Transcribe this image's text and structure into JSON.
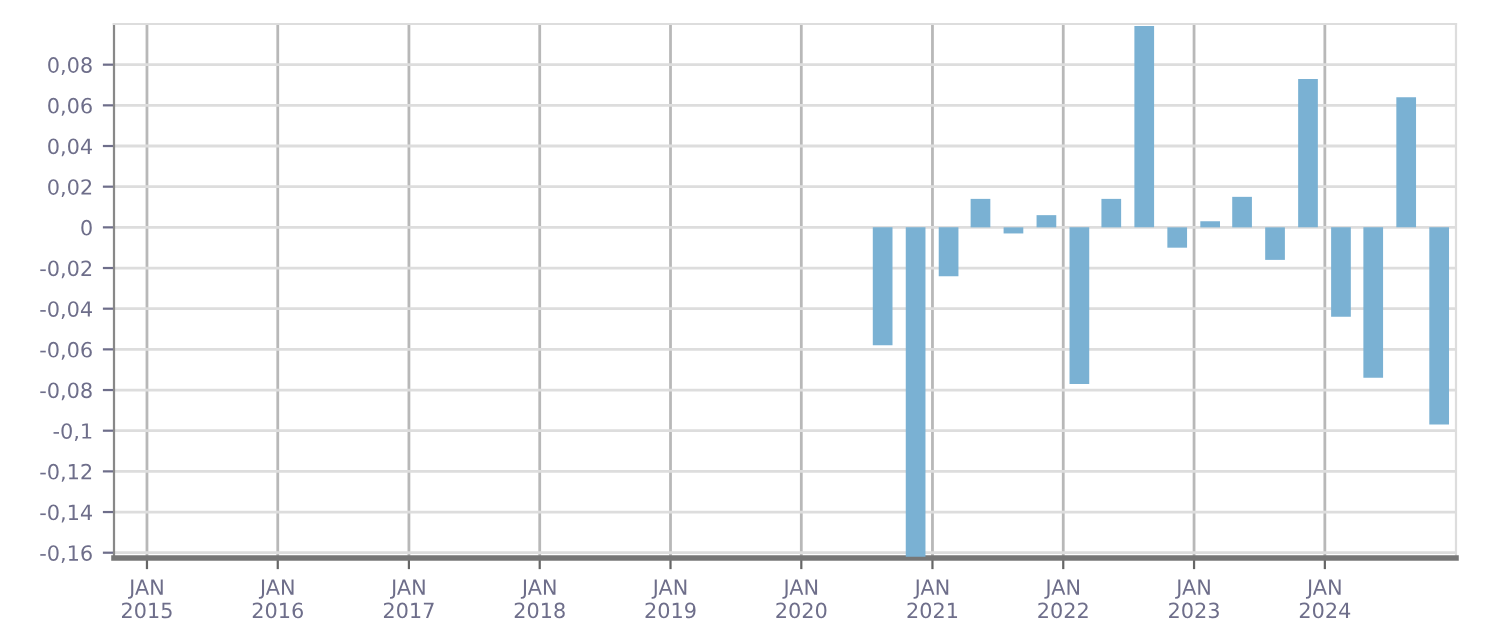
{
  "chart_data": {
    "type": "bar",
    "color": "#7ab1d3",
    "x": [
      "2020-08-15",
      "2020-11-15",
      "2021-02-15",
      "2021-05-15",
      "2021-08-15",
      "2021-11-15",
      "2022-02-15",
      "2022-05-15",
      "2022-08-15",
      "2022-11-15",
      "2023-02-15",
      "2023-05-15",
      "2023-08-15",
      "2023-11-15",
      "2024-02-15",
      "2024-05-15",
      "2024-08-15",
      "2024-11-15"
    ],
    "values": [
      -0.058,
      -0.162,
      -0.024,
      0.014,
      -0.003,
      0.006,
      -0.077,
      0.014,
      0.099,
      -0.01,
      0.003,
      0.015,
      -0.016,
      0.073,
      -0.044,
      -0.074,
      0.064,
      -0.097
    ],
    "xlim": [
      "2014-10-01",
      "2025-01-01"
    ],
    "xticks": [
      {
        "value": "2015-01-01",
        "label": "JAN\n2015"
      },
      {
        "value": "2016-01-01",
        "label": "JAN\n2016"
      },
      {
        "value": "2017-01-01",
        "label": "JAN\n2017"
      },
      {
        "value": "2018-01-01",
        "label": "JAN\n2018"
      },
      {
        "value": "2019-01-01",
        "label": "JAN\n2019"
      },
      {
        "value": "2020-01-01",
        "label": "JAN\n2020"
      },
      {
        "value": "2021-01-01",
        "label": "JAN\n2021"
      },
      {
        "value": "2022-01-01",
        "label": "JAN\n2022"
      },
      {
        "value": "2023-01-01",
        "label": "JAN\n2023"
      },
      {
        "value": "2024-01-01",
        "label": "JAN\n2024"
      }
    ],
    "ylim": [
      -0.1626,
      0.1
    ],
    "yticks": [
      {
        "value": 0.08,
        "label": "0,08"
      },
      {
        "value": 0.06,
        "label": "0,06"
      },
      {
        "value": 0.04,
        "label": "0,04"
      },
      {
        "value": 0.02,
        "label": "0,02"
      },
      0,
      {
        "value": -0.02,
        "label": "-0,02"
      },
      {
        "value": -0.04,
        "label": "-0,04"
      },
      {
        "value": -0.06,
        "label": "-0,06"
      },
      {
        "value": -0.08,
        "label": "-0,08"
      },
      {
        "value": -0.1,
        "label": "-0,1"
      },
      {
        "value": -0.12,
        "label": "-0,12"
      },
      {
        "value": -0.14,
        "label": "-0,14"
      },
      {
        "value": -0.16,
        "label": "-0,16"
      }
    ],
    "grid": true
  }
}
